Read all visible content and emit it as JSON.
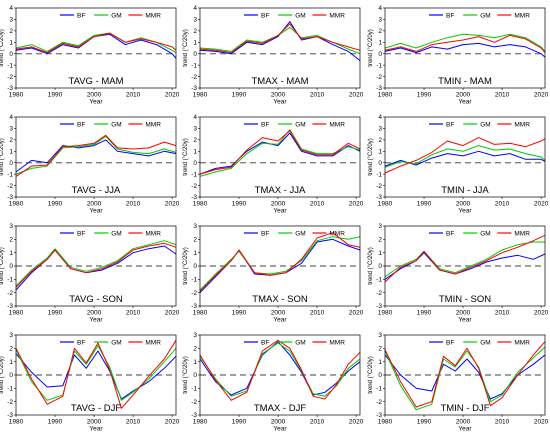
{
  "figure": {
    "colors": {
      "BF": "#0000ff",
      "GM": "#00cc00",
      "MMR": "#ff0000",
      "zero": "#808080",
      "axis": "#000000"
    }
  },
  "chart_data": [
    {
      "type": "line",
      "title": "TAVG - MAM",
      "xlabel": "Year",
      "ylabel": "trend (°C/20y)",
      "xlim": [
        1980,
        2021
      ],
      "ylim": [
        -3,
        4
      ],
      "xticks": [
        1980,
        1990,
        2000,
        2010,
        2020
      ],
      "yticks": [
        -3,
        -2,
        -1,
        0,
        1,
        2,
        3,
        4
      ],
      "legend": "top",
      "x": [
        1980,
        1984,
        1988,
        1992,
        1996,
        2000,
        2004,
        2008,
        2012,
        2016,
        2020,
        2021
      ],
      "series": [
        {
          "name": "BF",
          "values": [
            0.3,
            0.5,
            0.0,
            0.8,
            0.5,
            1.5,
            1.7,
            0.8,
            1.2,
            0.8,
            0.0,
            -0.4
          ]
        },
        {
          "name": "GM",
          "values": [
            0.5,
            0.8,
            0.2,
            1.0,
            0.7,
            1.6,
            1.8,
            1.0,
            1.4,
            1.0,
            0.3,
            0.1
          ]
        },
        {
          "name": "MMR",
          "values": [
            0.4,
            0.6,
            0.1,
            0.9,
            0.6,
            1.5,
            1.8,
            1.0,
            1.3,
            1.0,
            0.6,
            0.3
          ]
        }
      ]
    },
    {
      "type": "line",
      "title": "TMAX - MAM",
      "xlabel": "Year",
      "ylabel": "trend (°C/20y)",
      "xlim": [
        1980,
        2021
      ],
      "ylim": [
        -3,
        4
      ],
      "xticks": [
        1980,
        1990,
        2000,
        2010,
        2020
      ],
      "yticks": [
        -3,
        -2,
        -1,
        0,
        1,
        2,
        3,
        4
      ],
      "legend": "top",
      "x": [
        1980,
        1984,
        1988,
        1992,
        1996,
        2000,
        2003,
        2006,
        2010,
        2014,
        2018,
        2021
      ],
      "series": [
        {
          "name": "BF",
          "values": [
            0.3,
            0.2,
            0.0,
            1.0,
            0.8,
            1.5,
            2.8,
            1.2,
            1.5,
            0.8,
            0.2,
            -0.6
          ]
        },
        {
          "name": "GM",
          "values": [
            0.5,
            0.4,
            0.2,
            1.2,
            1.0,
            1.6,
            2.3,
            1.4,
            1.6,
            1.0,
            0.4,
            0.0
          ]
        },
        {
          "name": "MMR",
          "values": [
            0.4,
            0.3,
            0.1,
            1.1,
            0.9,
            1.6,
            2.6,
            1.3,
            1.5,
            1.0,
            0.6,
            0.3
          ]
        }
      ]
    },
    {
      "type": "line",
      "title": "TMIN - MAM",
      "xlabel": "Year",
      "ylabel": "trend (°C/20y)",
      "xlim": [
        1980,
        2021
      ],
      "ylim": [
        -3,
        4
      ],
      "xticks": [
        1980,
        1990,
        2000,
        2010,
        2020
      ],
      "yticks": [
        -3,
        -2,
        -1,
        0,
        1,
        2,
        3,
        4
      ],
      "legend": "top",
      "x": [
        1980,
        1984,
        1988,
        1992,
        1996,
        2000,
        2004,
        2008,
        2012,
        2016,
        2020,
        2021
      ],
      "series": [
        {
          "name": "BF",
          "values": [
            0.2,
            0.5,
            0.1,
            0.6,
            0.4,
            0.8,
            0.9,
            0.6,
            0.8,
            0.6,
            0.0,
            -0.3
          ]
        },
        {
          "name": "GM",
          "values": [
            0.5,
            0.9,
            0.5,
            1.0,
            1.4,
            1.7,
            1.6,
            1.4,
            1.7,
            1.4,
            0.6,
            0.2
          ]
        },
        {
          "name": "MMR",
          "values": [
            0.3,
            0.6,
            0.2,
            0.8,
            1.0,
            1.2,
            1.5,
            1.0,
            1.6,
            1.3,
            0.5,
            0.1
          ]
        }
      ]
    },
    {
      "type": "line",
      "title": "TAVG - JJA",
      "xlabel": "Year",
      "ylabel": "trend (°C/20y)",
      "xlim": [
        1980,
        2021
      ],
      "ylim": [
        -3,
        4
      ],
      "xticks": [
        1980,
        1990,
        2000,
        2010,
        2020
      ],
      "yticks": [
        -3,
        -2,
        -1,
        0,
        1,
        2,
        3,
        4
      ],
      "legend": "top",
      "x": [
        1980,
        1984,
        1988,
        1992,
        1996,
        2000,
        2003,
        2006,
        2010,
        2014,
        2018,
        2021
      ],
      "series": [
        {
          "name": "BF",
          "values": [
            -0.8,
            0.2,
            0.0,
            1.5,
            1.3,
            1.5,
            2.0,
            1.0,
            0.8,
            0.6,
            1.0,
            0.8
          ]
        },
        {
          "name": "GM",
          "values": [
            -1.0,
            -0.5,
            -0.3,
            1.3,
            1.4,
            1.6,
            2.3,
            1.2,
            0.9,
            0.8,
            1.2,
            0.9
          ]
        },
        {
          "name": "MMR",
          "values": [
            -1.2,
            -0.3,
            -0.2,
            1.4,
            1.5,
            1.7,
            2.4,
            1.3,
            1.2,
            1.3,
            1.8,
            1.5
          ]
        }
      ]
    },
    {
      "type": "line",
      "title": "TMAX - JJA",
      "xlabel": "Year",
      "ylabel": "trend (°C/20y)",
      "xlim": [
        1980,
        2021
      ],
      "ylim": [
        -3,
        4
      ],
      "xticks": [
        1980,
        1990,
        2000,
        2010,
        2020
      ],
      "yticks": [
        -3,
        -2,
        -1,
        0,
        1,
        2,
        3,
        4
      ],
      "legend": "top",
      "x": [
        1980,
        1984,
        1988,
        1992,
        1996,
        2000,
        2003,
        2006,
        2010,
        2014,
        2018,
        2021
      ],
      "series": [
        {
          "name": "BF",
          "values": [
            -1.0,
            -0.5,
            -0.3,
            1.0,
            1.8,
            1.5,
            2.6,
            1.0,
            0.6,
            0.6,
            1.5,
            1.0
          ]
        },
        {
          "name": "GM",
          "values": [
            -1.2,
            -0.8,
            -0.5,
            0.8,
            1.7,
            1.6,
            2.9,
            1.2,
            0.8,
            0.8,
            1.4,
            1.1
          ]
        },
        {
          "name": "MMR",
          "values": [
            -1.0,
            -0.6,
            -0.4,
            1.1,
            2.2,
            1.9,
            2.8,
            1.1,
            0.7,
            0.7,
            1.7,
            1.2
          ]
        }
      ]
    },
    {
      "type": "line",
      "title": "TMIN - JJA",
      "xlabel": "Year",
      "ylabel": "trend (°C/20y)",
      "xlim": [
        1980,
        2021
      ],
      "ylim": [
        -3,
        4
      ],
      "xticks": [
        1980,
        1990,
        2000,
        2010,
        2020
      ],
      "yticks": [
        -3,
        -2,
        -1,
        0,
        1,
        2,
        3,
        4
      ],
      "legend": "top",
      "x": [
        1980,
        1984,
        1988,
        1992,
        1996,
        2000,
        2004,
        2008,
        2012,
        2016,
        2020,
        2021
      ],
      "series": [
        {
          "name": "BF",
          "values": [
            -0.3,
            0.2,
            -0.2,
            0.4,
            0.8,
            0.6,
            1.0,
            0.6,
            0.8,
            0.3,
            0.3,
            0.1
          ]
        },
        {
          "name": "GM",
          "values": [
            -0.4,
            0.1,
            -0.1,
            0.7,
            1.2,
            1.0,
            1.5,
            1.1,
            1.2,
            0.8,
            0.5,
            0.2
          ]
        },
        {
          "name": "MMR",
          "values": [
            -0.9,
            -0.3,
            0.2,
            0.9,
            1.9,
            1.5,
            2.2,
            1.6,
            1.7,
            1.4,
            1.9,
            2.1
          ]
        }
      ]
    },
    {
      "type": "line",
      "title": "TAVG - SON",
      "xlabel": "Year",
      "ylabel": "trend (°C/20y)",
      "xlim": [
        1980,
        2021
      ],
      "ylim": [
        -3,
        3
      ],
      "xticks": [
        1980,
        1990,
        2000,
        2010,
        2020
      ],
      "yticks": [
        -3,
        -2,
        -1,
        0,
        1,
        2,
        3
      ],
      "legend": "top",
      "x": [
        1980,
        1984,
        1988,
        1990,
        1994,
        1998,
        2002,
        2006,
        2010,
        2014,
        2018,
        2021
      ],
      "series": [
        {
          "name": "BF",
          "values": [
            -1.8,
            -0.5,
            0.5,
            1.2,
            -0.2,
            -0.5,
            -0.3,
            0.2,
            1.0,
            1.3,
            1.5,
            0.9
          ]
        },
        {
          "name": "GM",
          "values": [
            -1.5,
            -0.3,
            0.6,
            1.3,
            -0.1,
            -0.4,
            -0.1,
            0.4,
            1.3,
            1.6,
            1.9,
            1.6
          ]
        },
        {
          "name": "MMR",
          "values": [
            -1.6,
            -0.4,
            0.5,
            1.2,
            -0.2,
            -0.5,
            -0.2,
            0.3,
            1.2,
            1.5,
            1.7,
            1.4
          ]
        }
      ]
    },
    {
      "type": "line",
      "title": "TMAX - SON",
      "xlabel": "Year",
      "ylabel": "trend (°C/20y)",
      "xlim": [
        1980,
        2021
      ],
      "ylim": [
        -3,
        3
      ],
      "xticks": [
        1980,
        1990,
        2000,
        2010,
        2020
      ],
      "yticks": [
        -3,
        -2,
        -1,
        0,
        1,
        2,
        3
      ],
      "legend": "top",
      "x": [
        1980,
        1984,
        1988,
        1990,
        1994,
        1998,
        2002,
        2006,
        2010,
        2014,
        2018,
        2021
      ],
      "series": [
        {
          "name": "BF",
          "values": [
            -2.0,
            -0.8,
            0.4,
            1.2,
            -0.6,
            -0.7,
            -0.5,
            0.2,
            1.8,
            2.0,
            1.5,
            1.2
          ]
        },
        {
          "name": "GM",
          "values": [
            -1.8,
            -0.6,
            0.5,
            1.1,
            -0.5,
            -0.6,
            -0.4,
            0.4,
            1.9,
            2.2,
            2.0,
            2.2
          ]
        },
        {
          "name": "MMR",
          "values": [
            -1.9,
            -0.7,
            0.4,
            1.2,
            -0.5,
            -0.7,
            -0.5,
            0.5,
            2.1,
            2.5,
            1.6,
            1.4
          ]
        }
      ]
    },
    {
      "type": "line",
      "title": "TMIN - SON",
      "xlabel": "Year",
      "ylabel": "trend (°C/20y)",
      "xlim": [
        1980,
        2021
      ],
      "ylim": [
        -3,
        3
      ],
      "xticks": [
        1980,
        1990,
        2000,
        2010,
        2020
      ],
      "yticks": [
        -3,
        -2,
        -1,
        0,
        1,
        2,
        3
      ],
      "legend": "top",
      "x": [
        1980,
        1984,
        1988,
        1990,
        1994,
        1998,
        2002,
        2006,
        2010,
        2014,
        2018,
        2021
      ],
      "series": [
        {
          "name": "BF",
          "values": [
            -1.0,
            -0.2,
            0.4,
            1.0,
            -0.3,
            -0.6,
            -0.2,
            0.3,
            0.6,
            0.8,
            0.5,
            0.9
          ]
        },
        {
          "name": "GM",
          "values": [
            -0.8,
            0.0,
            0.5,
            1.1,
            -0.2,
            -0.5,
            0.0,
            0.5,
            1.2,
            1.6,
            1.8,
            1.8
          ]
        },
        {
          "name": "MMR",
          "values": [
            -1.2,
            -0.1,
            0.4,
            1.1,
            -0.3,
            -0.6,
            -0.1,
            0.4,
            1.0,
            1.4,
            1.9,
            2.3
          ]
        }
      ]
    },
    {
      "type": "line",
      "title": "TAVG - DJF",
      "xlabel": "Year",
      "ylabel": "trend (°C/20y)",
      "xlim": [
        1980,
        2021
      ],
      "ylim": [
        -3,
        3
      ],
      "xticks": [
        1980,
        1990,
        2000,
        2010,
        2020
      ],
      "yticks": [
        -3,
        -2,
        -1,
        0,
        1,
        2,
        3
      ],
      "legend": "top",
      "x": [
        1980,
        1984,
        1988,
        1992,
        1995,
        1998,
        2001,
        2004,
        2007,
        2010,
        2014,
        2018,
        2021
      ],
      "series": [
        {
          "name": "BF",
          "values": [
            1.6,
            0.2,
            -0.9,
            -0.8,
            1.5,
            0.5,
            1.8,
            0.3,
            -1.8,
            -1.2,
            -0.5,
            0.5,
            1.4
          ]
        },
        {
          "name": "GM",
          "values": [
            1.9,
            -0.5,
            -1.9,
            -1.5,
            1.8,
            0.8,
            2.2,
            0.6,
            -1.9,
            -1.3,
            -0.3,
            1.0,
            2.0
          ]
        },
        {
          "name": "MMR",
          "values": [
            2.0,
            -0.3,
            -2.2,
            -1.6,
            2.0,
            0.9,
            2.4,
            0.4,
            -2.5,
            -1.5,
            -0.1,
            1.2,
            2.6
          ]
        }
      ]
    },
    {
      "type": "line",
      "title": "TMAX - DJF",
      "xlabel": "Year",
      "ylabel": "trend (°C/20y)",
      "xlim": [
        1980,
        2021
      ],
      "ylim": [
        -3,
        3
      ],
      "xticks": [
        1980,
        1990,
        2000,
        2010,
        2020
      ],
      "yticks": [
        -3,
        -2,
        -1,
        0,
        1,
        2,
        3
      ],
      "legend": "top",
      "x": [
        1980,
        1984,
        1988,
        1992,
        1996,
        2000,
        2003,
        2006,
        2009,
        2012,
        2015,
        2018,
        2021
      ],
      "series": [
        {
          "name": "BF",
          "values": [
            1.2,
            -0.5,
            -1.5,
            -1.0,
            1.5,
            2.5,
            1.5,
            0.2,
            -1.5,
            -1.3,
            -0.6,
            0.3,
            1.0
          ]
        },
        {
          "name": "GM",
          "values": [
            1.4,
            -0.3,
            -1.6,
            -1.2,
            1.6,
            2.4,
            1.8,
            0.3,
            -1.4,
            -1.6,
            -0.8,
            0.5,
            1.2
          ]
        },
        {
          "name": "MMR",
          "values": [
            1.5,
            -0.4,
            -1.9,
            -1.3,
            1.8,
            2.6,
            2.0,
            0.4,
            -1.6,
            -1.8,
            -0.7,
            0.8,
            1.7
          ]
        }
      ]
    },
    {
      "type": "line",
      "title": "TMIN - DJF",
      "xlabel": "Year",
      "ylabel": "trend (°C/20y)",
      "xlim": [
        1980,
        2021
      ],
      "ylim": [
        -3,
        3
      ],
      "xticks": [
        1980,
        1990,
        2000,
        2010,
        2020
      ],
      "yticks": [
        -3,
        -2,
        -1,
        0,
        1,
        2,
        3
      ],
      "legend": "top",
      "x": [
        1980,
        1984,
        1988,
        1992,
        1995,
        1998,
        2001,
        2004,
        2007,
        2010,
        2014,
        2018,
        2021
      ],
      "series": [
        {
          "name": "BF",
          "values": [
            1.5,
            0.0,
            -1.0,
            -1.2,
            0.8,
            0.3,
            1.2,
            0.2,
            -1.8,
            -1.4,
            0.0,
            0.8,
            1.5
          ]
        },
        {
          "name": "GM",
          "values": [
            1.8,
            -0.8,
            -2.6,
            -2.2,
            1.2,
            0.6,
            1.8,
            0.6,
            -2.0,
            -1.5,
            0.2,
            1.3,
            2.1
          ]
        },
        {
          "name": "MMR",
          "values": [
            1.9,
            -0.5,
            -2.4,
            -2.0,
            1.4,
            0.7,
            2.0,
            0.5,
            -2.3,
            -1.7,
            0.0,
            1.5,
            2.5
          ]
        }
      ]
    }
  ]
}
